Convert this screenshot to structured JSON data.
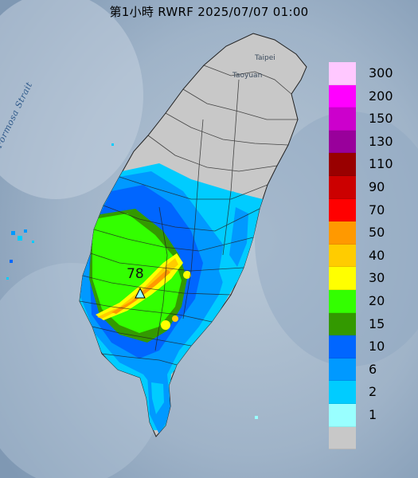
{
  "title": "第1小時  RWRF 2025/07/07 01:00",
  "places": {
    "taipei": "Taipei",
    "taoyuan": "Taoyuan",
    "strait": "Formosa Strait"
  },
  "max_marker": {
    "value": "78"
  },
  "legend": {
    "levels": [
      {
        "label": "300",
        "color": "#ffc8ff"
      },
      {
        "label": "200",
        "color": "#ff00ff"
      },
      {
        "label": "150",
        "color": "#cc00cc"
      },
      {
        "label": "130",
        "color": "#99009b"
      },
      {
        "label": "110",
        "color": "#990000"
      },
      {
        "label": "90",
        "color": "#cc0000"
      },
      {
        "label": "70",
        "color": "#ff0000"
      },
      {
        "label": "50",
        "color": "#ff9900"
      },
      {
        "label": "40",
        "color": "#ffcc00"
      },
      {
        "label": "30",
        "color": "#ffff00"
      },
      {
        "label": "20",
        "color": "#33ff00"
      },
      {
        "label": "15",
        "color": "#339900"
      },
      {
        "label": "10",
        "color": "#0066ff"
      },
      {
        "label": "6",
        "color": "#0099ff"
      },
      {
        "label": "2",
        "color": "#00ccff"
      },
      {
        "label": "1",
        "color": "#99ffff"
      },
      {
        "label": "",
        "color": "#c8c8c8"
      }
    ]
  }
}
